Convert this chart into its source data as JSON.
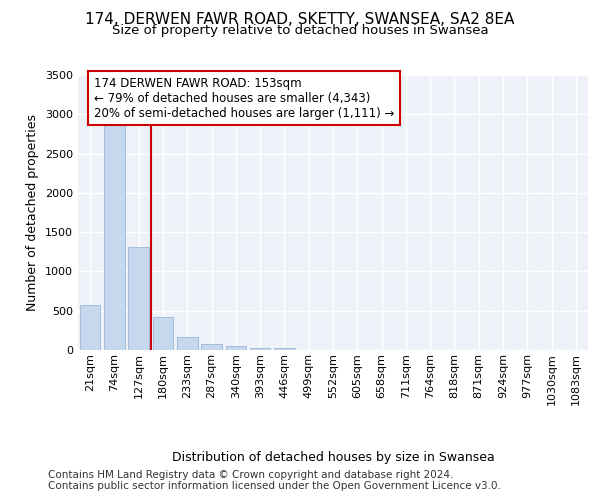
{
  "title1": "174, DERWEN FAWR ROAD, SKETTY, SWANSEA, SA2 8EA",
  "title2": "Size of property relative to detached houses in Swansea",
  "xlabel": "Distribution of detached houses by size in Swansea",
  "ylabel": "Number of detached properties",
  "footer1": "Contains HM Land Registry data © Crown copyright and database right 2024.",
  "footer2": "Contains public sector information licensed under the Open Government Licence v3.0.",
  "bin_labels": [
    "21sqm",
    "74sqm",
    "127sqm",
    "180sqm",
    "233sqm",
    "287sqm",
    "340sqm",
    "393sqm",
    "446sqm",
    "499sqm",
    "552sqm",
    "605sqm",
    "658sqm",
    "711sqm",
    "764sqm",
    "818sqm",
    "871sqm",
    "924sqm",
    "977sqm",
    "1030sqm",
    "1083sqm"
  ],
  "bar_values": [
    575,
    2920,
    1310,
    415,
    170,
    80,
    50,
    30,
    20,
    0,
    0,
    0,
    0,
    0,
    0,
    0,
    0,
    0,
    0,
    0,
    0
  ],
  "bar_color": "#c5d8ee",
  "bar_edge_color": "#9ab8d8",
  "annotation_text": "174 DERWEN FAWR ROAD: 153sqm\n← 79% of detached houses are smaller (4,343)\n20% of semi-detached houses are larger (1,111) →",
  "vline_color": "#cc0000",
  "annotation_box_edgecolor": "#cc0000",
  "ylim": [
    0,
    3500
  ],
  "yticks": [
    0,
    500,
    1000,
    1500,
    2000,
    2500,
    3000,
    3500
  ],
  "background_color": "#eef2f8",
  "grid_color": "#ffffff",
  "title1_fontsize": 11,
  "title2_fontsize": 9.5,
  "xlabel_fontsize": 9,
  "ylabel_fontsize": 9,
  "tick_fontsize": 8,
  "annotation_fontsize": 8.5,
  "footer_fontsize": 7.5
}
